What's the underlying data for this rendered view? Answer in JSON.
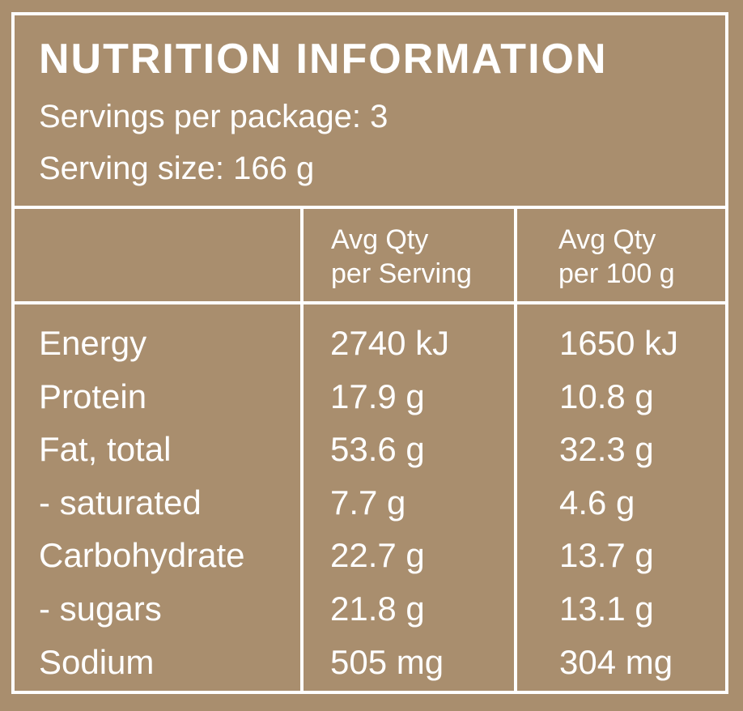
{
  "title": "NUTRITION INFORMATION",
  "servings_per_package": "Servings per package: 3",
  "serving_size": "Serving size: 166 g",
  "columns": {
    "per_serving": [
      "Avg Qty",
      "per Serving"
    ],
    "per_100g": [
      "Avg Qty",
      "per 100 g"
    ]
  },
  "rows": [
    {
      "name": "Energy",
      "per_serving": "2740 kJ",
      "per_100g": "1650 kJ"
    },
    {
      "name": "Protein",
      "per_serving": "17.9 g",
      "per_100g": "10.8 g"
    },
    {
      "name": "Fat, total",
      "per_serving": "53.6 g",
      "per_100g": "32.3 g"
    },
    {
      "name": "- saturated",
      "per_serving": "7.7 g",
      "per_100g": "4.6 g"
    },
    {
      "name": "Carbohydrate",
      "per_serving": "22.7 g",
      "per_100g": "13.7 g"
    },
    {
      "name": "- sugars",
      "per_serving": "21.8 g",
      "per_100g": "13.1 g"
    },
    {
      "name": "Sodium",
      "per_serving": "505 mg",
      "per_100g": "304 mg"
    }
  ],
  "colors": {
    "background": "#a98e6e",
    "foreground": "#ffffff"
  }
}
